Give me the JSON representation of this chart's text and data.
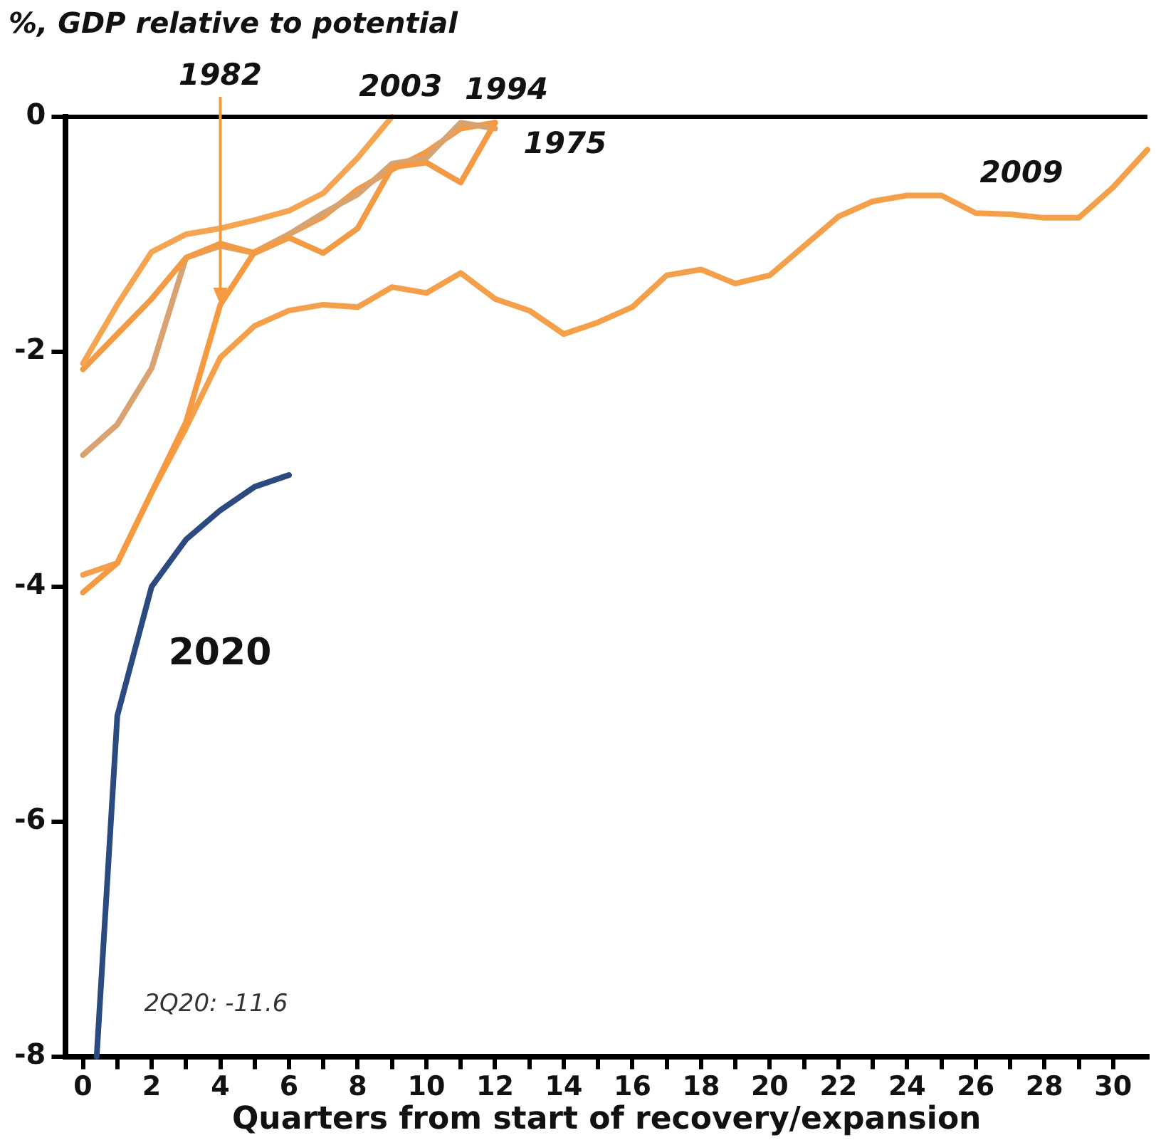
{
  "chart_data": {
    "type": "line",
    "title": "%, GDP relative to potential",
    "xlabel": "Quarters from start of recovery/expansion",
    "xlim": [
      -0.5,
      31
    ],
    "ylim": [
      -8,
      0
    ],
    "xticks": [
      0,
      {
        "value": 1,
        "label": null
      },
      2,
      {
        "value": 3,
        "label": null
      },
      4,
      {
        "value": 5,
        "label": null
      },
      6,
      {
        "value": 7,
        "label": null
      },
      8,
      {
        "value": 9,
        "label": null
      },
      10,
      {
        "value": 11,
        "label": null
      },
      12,
      {
        "value": 13,
        "label": null
      },
      14,
      {
        "value": 15,
        "label": null
      },
      16,
      {
        "value": 17,
        "label": null
      },
      18,
      {
        "value": 19,
        "label": null
      },
      20,
      {
        "value": 21,
        "label": null
      },
      22,
      {
        "value": 23,
        "label": null
      },
      24,
      {
        "value": 25,
        "label": null
      },
      26,
      {
        "value": 27,
        "label": null
      },
      28,
      {
        "value": 29,
        "label": null
      },
      30
    ],
    "yticks": [
      -8,
      -6,
      -4,
      -2,
      0
    ],
    "grid": false,
    "legend": false,
    "marker": "none",
    "line_style": "solid",
    "ref_lines": [
      {
        "axis": "y",
        "value": 0,
        "color": "#000000"
      }
    ],
    "annotations": [
      "2Q20: -11.6"
    ],
    "series": [
      {
        "name": "2003",
        "color": "#f5a452",
        "x": [
          0,
          1,
          2,
          3,
          4,
          5,
          6,
          7,
          8,
          9
        ],
        "values": [
          -2.1,
          -1.6,
          -1.15,
          -1.0,
          -0.95,
          -0.88,
          -0.8,
          -0.65,
          -0.35,
          0
        ]
      },
      {
        "name": "1975",
        "color": "#f39a45",
        "x": [
          0,
          1,
          2,
          3,
          4,
          5,
          6,
          7,
          8,
          9,
          10,
          11,
          12
        ],
        "values": [
          -2.15,
          -1.85,
          -1.55,
          -1.2,
          -1.08,
          -1.16,
          -1.03,
          -1.16,
          -0.95,
          -0.43,
          -0.39,
          -0.56,
          -0.05
        ]
      },
      {
        "name": "1994",
        "color": "#d9a271",
        "x": [
          0,
          1,
          2,
          3,
          4,
          5,
          6,
          7,
          8,
          9,
          10,
          11,
          12
        ],
        "values": [
          -2.88,
          -2.62,
          -2.14,
          -1.2,
          -1.1,
          -1.16,
          -1.0,
          -0.82,
          -0.66,
          -0.4,
          -0.35,
          -0.05,
          -0.1
        ]
      },
      {
        "name": "1982",
        "color": "#f59a40",
        "x": [
          0,
          1,
          2,
          3,
          4,
          5,
          6,
          7,
          8,
          9,
          10,
          11,
          12
        ],
        "values": [
          -4.05,
          -3.8,
          -3.2,
          -2.6,
          -1.6,
          -1.15,
          -1.0,
          -0.85,
          -0.62,
          -0.45,
          -0.3,
          -0.1,
          -0.05
        ]
      },
      {
        "name": "2009",
        "color": "#f4a04a",
        "x": [
          0,
          1,
          2,
          3,
          4,
          5,
          6,
          7,
          8,
          9,
          10,
          11,
          12,
          13,
          14,
          15,
          16,
          17,
          18,
          19,
          20,
          21,
          22,
          23,
          24,
          25,
          26,
          27,
          28,
          29,
          30,
          31
        ],
        "values": [
          -3.9,
          -3.8,
          -3.2,
          -2.65,
          -2.05,
          -1.78,
          -1.65,
          -1.6,
          -1.62,
          -1.45,
          -1.5,
          -1.33,
          -1.55,
          -1.65,
          -1.85,
          -1.75,
          -1.62,
          -1.35,
          -1.3,
          -1.42,
          -1.35,
          -1.1,
          -0.85,
          -0.72,
          -0.67,
          -0.67,
          -0.82,
          -0.83,
          -0.86,
          -0.86,
          -0.6,
          -0.28
        ]
      },
      {
        "name": "2020",
        "color": "#2b4a80",
        "x": [
          0.4,
          1,
          2,
          3,
          4,
          5,
          6
        ],
        "values": [
          -8,
          -5.1,
          -4.0,
          -3.6,
          -3.35,
          -3.15,
          -3.05
        ]
      }
    ]
  }
}
